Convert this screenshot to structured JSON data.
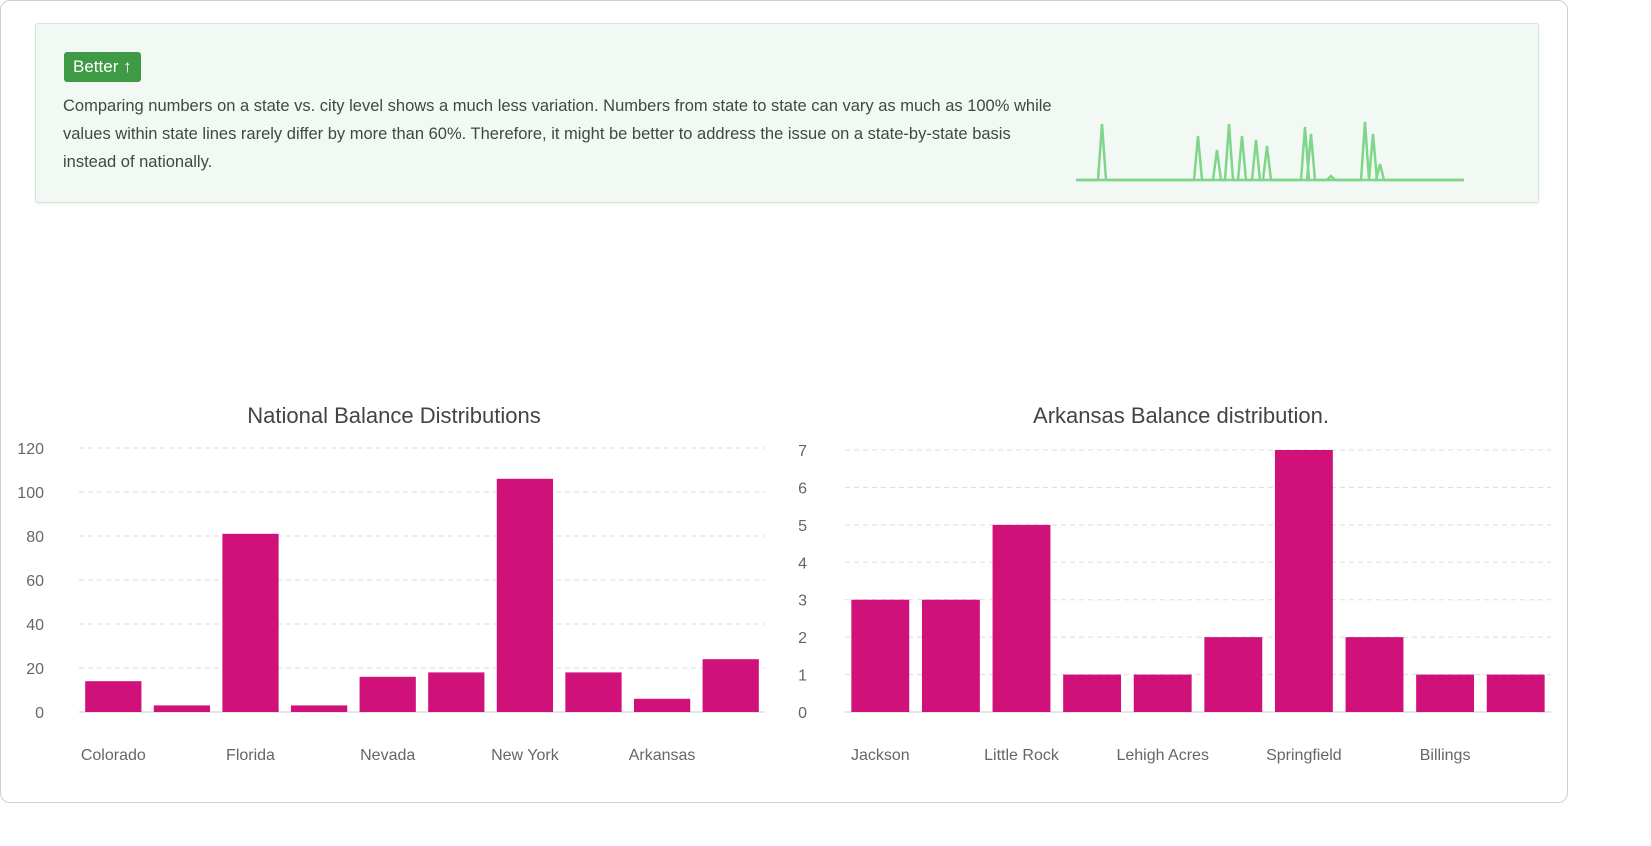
{
  "insight": {
    "badge_label": "Better",
    "badge_icon": "arrow-up-icon",
    "text": "Comparing numbers on a state vs. city level shows a much less variation. Numbers from state to state can vary as much as 100% while values within state lines rarely differ by more than 60%. Therefore, it might be better to address the issue on a state-by-state basis instead of nationally.",
    "colors": {
      "badge": "#3f9a45",
      "spark": "#7fd68a",
      "spark_markers": "#2b3fbf"
    }
  },
  "chart_data": [
    {
      "type": "bar",
      "title": "National Balance Distributions",
      "categories": [
        "Colorado",
        "",
        "Florida",
        "",
        "Nevada",
        "",
        "New York",
        "",
        "Arkansas",
        ""
      ],
      "values": [
        14,
        3,
        81,
        3,
        16,
        18,
        106,
        18,
        6,
        24
      ],
      "ylim": [
        0,
        120
      ],
      "yticks": [
        0,
        20,
        40,
        60,
        80,
        100,
        120
      ],
      "grid": true,
      "color": "#d0117a"
    },
    {
      "type": "bar",
      "title": "Arkansas Balance distribution.",
      "categories": [
        "Jackson",
        "",
        "Little Rock",
        "",
        "Lehigh Acres",
        "",
        "Springfield",
        "",
        "Billings",
        ""
      ],
      "values": [
        3,
        3,
        5,
        1,
        1,
        2,
        7,
        2,
        1,
        1
      ],
      "ylim": [
        0,
        7
      ],
      "yticks": [
        0,
        1,
        2,
        3,
        4,
        5,
        6,
        7
      ],
      "grid": true,
      "color": "#d0117a"
    }
  ]
}
